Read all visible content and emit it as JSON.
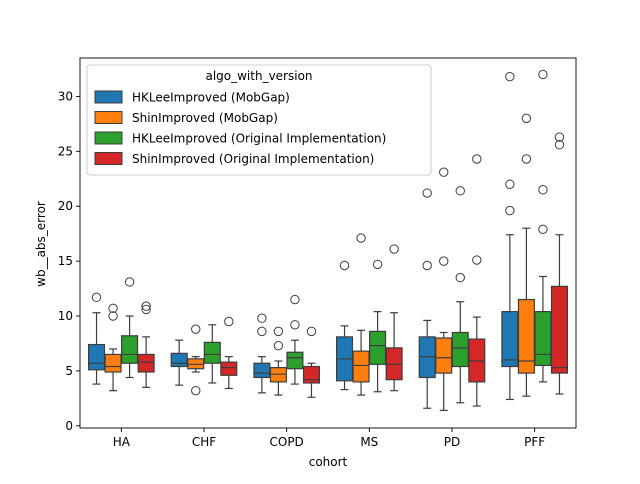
{
  "chart_data": {
    "type": "boxplot",
    "xlabel": "cohort",
    "ylabel": "wb__abs_error",
    "ylim": [
      -0.2,
      33.5
    ],
    "yticks": [
      0,
      5,
      10,
      15,
      20,
      25,
      30
    ],
    "categories": [
      "HA",
      "CHF",
      "COPD",
      "MS",
      "PD",
      "PFF"
    ],
    "legend": {
      "title": "algo_with_version",
      "placement": "top-left"
    },
    "series": [
      {
        "name": "HKLeeImproved (MobGap)",
        "color": "#1f77b4",
        "boxes": [
          {
            "whislo": 3.8,
            "q1": 5.1,
            "med": 5.7,
            "q3": 7.4,
            "whishi": 10.3,
            "fliers": [
              11.7
            ]
          },
          {
            "whislo": 3.7,
            "q1": 5.4,
            "med": 5.7,
            "q3": 6.6,
            "whishi": 7.8,
            "fliers": []
          },
          {
            "whislo": 3.0,
            "q1": 4.4,
            "med": 4.8,
            "q3": 5.7,
            "whishi": 6.3,
            "fliers": [
              8.6,
              9.8
            ]
          },
          {
            "whislo": 3.3,
            "q1": 4.1,
            "med": 6.1,
            "q3": 8.1,
            "whishi": 9.1,
            "fliers": [
              14.6
            ]
          },
          {
            "whislo": 1.6,
            "q1": 4.4,
            "med": 6.3,
            "q3": 8.1,
            "whishi": 9.6,
            "fliers": [
              14.6,
              21.2
            ]
          },
          {
            "whislo": 2.4,
            "q1": 5.4,
            "med": 6.0,
            "q3": 10.4,
            "whishi": 17.4,
            "fliers": [
              19.6,
              22.0,
              31.8
            ]
          }
        ]
      },
      {
        "name": "ShinImproved (MobGap)",
        "color": "#ff7f0e",
        "boxes": [
          {
            "whislo": 3.2,
            "q1": 4.9,
            "med": 5.4,
            "q3": 6.5,
            "whishi": 7.0,
            "fliers": [
              10.0,
              10.7
            ]
          },
          {
            "whislo": 4.9,
            "q1": 5.2,
            "med": 5.6,
            "q3": 6.1,
            "whishi": 6.3,
            "fliers": [
              3.2,
              8.8
            ]
          },
          {
            "whislo": 2.8,
            "q1": 4.0,
            "med": 4.7,
            "q3": 5.3,
            "whishi": 5.9,
            "fliers": [
              7.3,
              8.6
            ]
          },
          {
            "whislo": 2.8,
            "q1": 4.0,
            "med": 5.5,
            "q3": 6.8,
            "whishi": 8.7,
            "fliers": [
              17.1
            ]
          },
          {
            "whislo": 1.4,
            "q1": 4.8,
            "med": 6.2,
            "q3": 8.0,
            "whishi": 8.5,
            "fliers": [
              15.0,
              23.1
            ]
          },
          {
            "whislo": 2.7,
            "q1": 4.8,
            "med": 5.9,
            "q3": 11.5,
            "whishi": 18.0,
            "fliers": [
              24.3,
              28.0
            ]
          }
        ]
      },
      {
        "name": "HKLeeImproved (Original Implementation)",
        "color": "#2ca02c",
        "boxes": [
          {
            "whislo": 4.4,
            "q1": 5.7,
            "med": 6.5,
            "q3": 8.2,
            "whishi": 10.0,
            "fliers": [
              13.1
            ]
          },
          {
            "whislo": 3.9,
            "q1": 5.7,
            "med": 6.5,
            "q3": 7.6,
            "whishi": 9.2,
            "fliers": []
          },
          {
            "whislo": 3.8,
            "q1": 5.2,
            "med": 6.2,
            "q3": 6.7,
            "whishi": 7.8,
            "fliers": [
              9.2,
              11.5
            ]
          },
          {
            "whislo": 3.1,
            "q1": 5.6,
            "med": 7.3,
            "q3": 8.6,
            "whishi": 10.4,
            "fliers": [
              14.7
            ]
          },
          {
            "whislo": 2.1,
            "q1": 5.4,
            "med": 7.1,
            "q3": 8.5,
            "whishi": 11.3,
            "fliers": [
              13.5,
              21.4
            ]
          },
          {
            "whislo": 4.0,
            "q1": 5.5,
            "med": 6.5,
            "q3": 10.4,
            "whishi": 13.6,
            "fliers": [
              17.9,
              21.5,
              32.0
            ]
          }
        ]
      },
      {
        "name": "ShinImproved (Original Implementation)",
        "color": "#d62728",
        "boxes": [
          {
            "whislo": 3.5,
            "q1": 4.9,
            "med": 5.8,
            "q3": 6.5,
            "whishi": 8.1,
            "fliers": [
              10.6,
              10.9
            ]
          },
          {
            "whislo": 3.4,
            "q1": 4.6,
            "med": 5.3,
            "q3": 5.8,
            "whishi": 6.3,
            "fliers": [
              9.5
            ]
          },
          {
            "whislo": 2.6,
            "q1": 3.9,
            "med": 4.2,
            "q3": 5.4,
            "whishi": 5.7,
            "fliers": [
              8.6
            ]
          },
          {
            "whislo": 3.2,
            "q1": 4.2,
            "med": 5.6,
            "q3": 7.1,
            "whishi": 10.3,
            "fliers": [
              16.1
            ]
          },
          {
            "whislo": 1.8,
            "q1": 4.0,
            "med": 5.9,
            "q3": 7.9,
            "whishi": 9.9,
            "fliers": [
              15.1,
              24.3
            ]
          },
          {
            "whislo": 2.9,
            "q1": 4.8,
            "med": 5.3,
            "q3": 12.7,
            "whishi": 17.4,
            "fliers": [
              25.6,
              26.3
            ]
          }
        ]
      }
    ]
  }
}
